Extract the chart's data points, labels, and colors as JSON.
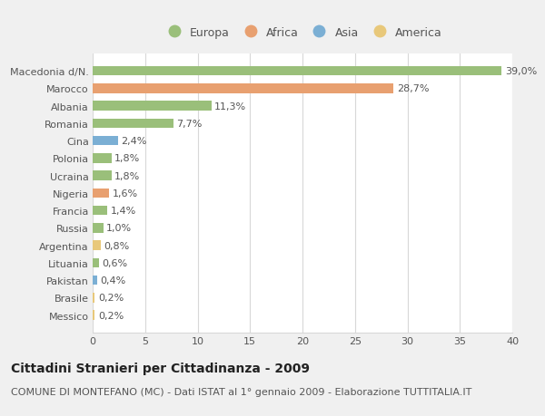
{
  "categories": [
    "Messico",
    "Brasile",
    "Pakistan",
    "Lituania",
    "Argentina",
    "Russia",
    "Francia",
    "Nigeria",
    "Ucraina",
    "Polonia",
    "Cina",
    "Romania",
    "Albania",
    "Marocco",
    "Macedonia d/N."
  ],
  "values": [
    0.2,
    0.2,
    0.4,
    0.6,
    0.8,
    1.0,
    1.4,
    1.6,
    1.8,
    1.8,
    2.4,
    7.7,
    11.3,
    28.7,
    39.0
  ],
  "labels": [
    "0,2%",
    "0,2%",
    "0,4%",
    "0,6%",
    "0,8%",
    "1,0%",
    "1,4%",
    "1,6%",
    "1,8%",
    "1,8%",
    "2,4%",
    "7,7%",
    "11,3%",
    "28,7%",
    "39,0%"
  ],
  "colors": [
    "#e8c87a",
    "#e8c87a",
    "#7bafd4",
    "#9abf7a",
    "#e8c87a",
    "#9abf7a",
    "#9abf7a",
    "#e8a070",
    "#9abf7a",
    "#9abf7a",
    "#7bafd4",
    "#9abf7a",
    "#9abf7a",
    "#e8a070",
    "#9abf7a"
  ],
  "legend_labels": [
    "Europa",
    "Africa",
    "Asia",
    "America"
  ],
  "legend_colors": [
    "#9abf7a",
    "#e8a070",
    "#7bafd4",
    "#e8c87a"
  ],
  "title": "Cittadini Stranieri per Cittadinanza - 2009",
  "subtitle": "COMUNE DI MONTEFANO (MC) - Dati ISTAT al 1° gennaio 2009 - Elaborazione TUTTITALIA.IT",
  "xlim": [
    0,
    40
  ],
  "xticks": [
    0,
    5,
    10,
    15,
    20,
    25,
    30,
    35,
    40
  ],
  "fig_bg_color": "#f0f0f0",
  "plot_bg_color": "#ffffff",
  "grid_color": "#d8d8d8",
  "text_color": "#555555",
  "title_color": "#222222",
  "title_fontsize": 10,
  "subtitle_fontsize": 8,
  "tick_fontsize": 8,
  "label_fontsize": 8,
  "legend_fontsize": 9
}
